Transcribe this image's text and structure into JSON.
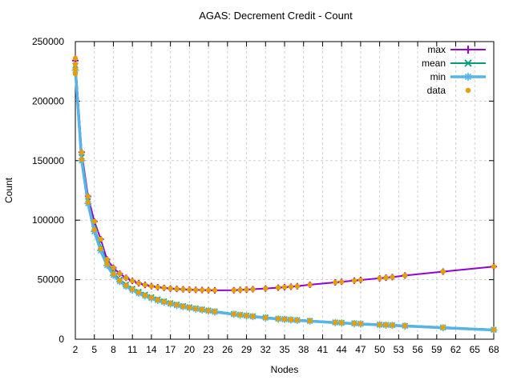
{
  "title": "AGAS: Decrement Credit - Count",
  "colors": {
    "background": "#ffffff",
    "grid": "#cfcfcf",
    "axis": "#000000",
    "text": "#000000",
    "max": "#9400d3",
    "mean": "#009e73",
    "min": "#56b4e9",
    "data": "#e69f00"
  },
  "legend": {
    "position": "top-right",
    "entries": [
      "max",
      "mean",
      "min",
      "data"
    ]
  },
  "chart_data": {
    "type": "line",
    "title": "AGAS: Decrement Credit - Count",
    "xlabel": "Nodes",
    "ylabel": "Count",
    "xlim": [
      2,
      68
    ],
    "ylim": [
      0,
      250000
    ],
    "grid": true,
    "legend_position": "top-right",
    "xticks": [
      2,
      5,
      8,
      11,
      14,
      17,
      20,
      23,
      26,
      29,
      32,
      35,
      38,
      41,
      44,
      47,
      50,
      53,
      56,
      59,
      62,
      65,
      68
    ],
    "yticks": [
      0,
      50000,
      100000,
      150000,
      200000,
      250000
    ],
    "x": [
      2,
      3,
      4,
      5,
      6,
      7,
      8,
      9,
      10,
      11,
      12,
      13,
      14,
      15,
      16,
      17,
      18,
      19,
      20,
      21,
      22,
      23,
      24,
      27,
      28,
      29,
      30,
      32,
      34,
      35,
      36,
      37,
      39,
      43,
      44,
      46,
      47,
      50,
      51,
      52,
      54,
      60,
      68
    ],
    "series": [
      {
        "name": "max",
        "color": "#9400d3",
        "marker": "plus",
        "style": "linespoints",
        "values": [
          234000,
          157000,
          120000,
          99000,
          84000,
          67000,
          60000,
          55000,
          51500,
          49000,
          47000,
          45600,
          44500,
          43700,
          43100,
          42600,
          42200,
          41900,
          41600,
          41400,
          41300,
          41200,
          41100,
          41200,
          41400,
          41700,
          42000,
          42600,
          43300,
          43700,
          44100,
          44500,
          45800,
          47700,
          48200,
          49200,
          49700,
          51200,
          51700,
          52200,
          53500,
          56800,
          61000
        ]
      },
      {
        "name": "mean",
        "color": "#009e73",
        "marker": "x",
        "style": "linespoints",
        "values": [
          230000,
          153000,
          116000,
          93000,
          77000,
          64000,
          55500,
          50000,
          45800,
          42500,
          39800,
          37400,
          35300,
          33500,
          31900,
          30400,
          29100,
          27900,
          26900,
          25900,
          25100,
          24200,
          23400,
          21300,
          20600,
          20000,
          19400,
          18300,
          17300,
          16900,
          16500,
          16100,
          15500,
          14200,
          13900,
          13400,
          13100,
          12300,
          12100,
          11900,
          11400,
          9900,
          8000
        ]
      },
      {
        "name": "min",
        "color": "#56b4e9",
        "marker": "asterisk",
        "style": "linespoints",
        "values": [
          226000,
          150000,
          114000,
          90500,
          74500,
          62000,
          53800,
          48500,
          44500,
          41300,
          38700,
          36400,
          34400,
          32600,
          31100,
          29700,
          28400,
          27300,
          26300,
          25400,
          24600,
          23700,
          22900,
          20900,
          20200,
          19600,
          19000,
          17900,
          17000,
          16600,
          16200,
          15800,
          15200,
          13900,
          13600,
          13100,
          12800,
          12000,
          11800,
          11600,
          11100,
          9600,
          7700
        ]
      },
      {
        "name": "data",
        "color": "#e69f00",
        "marker": "dot",
        "style": "scatter",
        "points": [
          [
            2,
            236000
          ],
          [
            2,
            231000
          ],
          [
            2,
            227000
          ],
          [
            2,
            223000
          ],
          [
            3,
            157000
          ],
          [
            3,
            151000
          ],
          [
            4,
            120000
          ],
          [
            4,
            115000
          ],
          [
            5,
            99000
          ],
          [
            5,
            92000
          ],
          [
            6,
            84000
          ],
          [
            6,
            76000
          ],
          [
            7,
            67000
          ],
          [
            7,
            63000
          ],
          [
            8,
            60000
          ],
          [
            8,
            54800
          ],
          [
            9,
            55000
          ],
          [
            9,
            49300
          ],
          [
            10,
            51500
          ],
          [
            10,
            45200
          ],
          [
            11,
            49000
          ],
          [
            11,
            42000
          ],
          [
            12,
            47000
          ],
          [
            12,
            39300
          ],
          [
            13,
            45600
          ],
          [
            13,
            36900
          ],
          [
            14,
            44500
          ],
          [
            14,
            34900
          ],
          [
            15,
            43700
          ],
          [
            15,
            33100
          ],
          [
            16,
            43100
          ],
          [
            16,
            31500
          ],
          [
            17,
            42600
          ],
          [
            17,
            30100
          ],
          [
            18,
            42200
          ],
          [
            18,
            28800
          ],
          [
            19,
            41900
          ],
          [
            19,
            27600
          ],
          [
            20,
            41600
          ],
          [
            20,
            26600
          ],
          [
            21,
            41400
          ],
          [
            21,
            25700
          ],
          [
            22,
            41300
          ],
          [
            22,
            24900
          ],
          [
            23,
            41200
          ],
          [
            23,
            24000
          ],
          [
            24,
            41100
          ],
          [
            24,
            23200
          ],
          [
            27,
            41200
          ],
          [
            27,
            21100
          ],
          [
            28,
            41400
          ],
          [
            28,
            20400
          ],
          [
            29,
            41700
          ],
          [
            29,
            19800
          ],
          [
            30,
            42000
          ],
          [
            30,
            19200
          ],
          [
            32,
            42600
          ],
          [
            32,
            18100
          ],
          [
            34,
            43300
          ],
          [
            34,
            17200
          ],
          [
            35,
            43700
          ],
          [
            35,
            16800
          ],
          [
            36,
            44100
          ],
          [
            36,
            16400
          ],
          [
            37,
            44500
          ],
          [
            37,
            16000
          ],
          [
            39,
            45800
          ],
          [
            39,
            15400
          ],
          [
            43,
            47700
          ],
          [
            43,
            14100
          ],
          [
            44,
            48200
          ],
          [
            44,
            13800
          ],
          [
            46,
            49200
          ],
          [
            46,
            13300
          ],
          [
            47,
            49700
          ],
          [
            47,
            13000
          ],
          [
            50,
            51200
          ],
          [
            50,
            12200
          ],
          [
            51,
            51700
          ],
          [
            51,
            12000
          ],
          [
            52,
            52200
          ],
          [
            52,
            11800
          ],
          [
            54,
            53500
          ],
          [
            54,
            11300
          ],
          [
            60,
            56800
          ],
          [
            60,
            9800
          ],
          [
            68,
            61000
          ],
          [
            68,
            7900
          ]
        ]
      }
    ]
  }
}
